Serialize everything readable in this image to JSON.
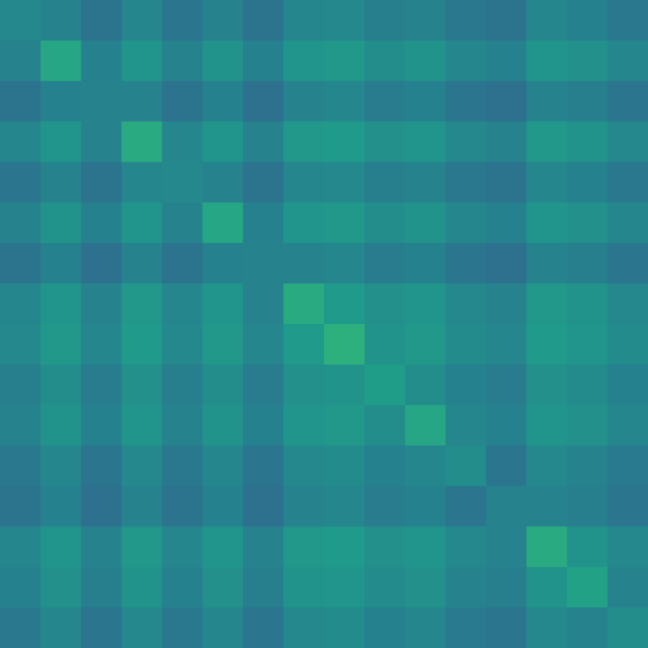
{
  "chart_data": {
    "type": "heatmap",
    "colormap": "viridis",
    "vlim": [
      0,
      1
    ],
    "z": [
      [
        0.47,
        0.45,
        0.38,
        0.46,
        0.39,
        0.45,
        0.38,
        0.46,
        0.47,
        0.43,
        0.45,
        0.4,
        0.38,
        0.46,
        0.44,
        0.4
      ],
      [
        0.45,
        0.59,
        0.44,
        0.52,
        0.45,
        0.51,
        0.44,
        0.52,
        0.53,
        0.49,
        0.51,
        0.46,
        0.44,
        0.52,
        0.5,
        0.46
      ],
      [
        0.38,
        0.44,
        0.45,
        0.45,
        0.38,
        0.44,
        0.37,
        0.45,
        0.46,
        0.42,
        0.44,
        0.39,
        0.37,
        0.45,
        0.43,
        0.39
      ],
      [
        0.46,
        0.52,
        0.45,
        0.61,
        0.46,
        0.52,
        0.45,
        0.53,
        0.54,
        0.5,
        0.52,
        0.47,
        0.45,
        0.53,
        0.51,
        0.47
      ],
      [
        0.39,
        0.45,
        0.38,
        0.46,
        0.47,
        0.45,
        0.38,
        0.46,
        0.47,
        0.43,
        0.45,
        0.4,
        0.38,
        0.46,
        0.44,
        0.4
      ],
      [
        0.45,
        0.51,
        0.44,
        0.52,
        0.45,
        0.59,
        0.44,
        0.52,
        0.53,
        0.49,
        0.51,
        0.46,
        0.44,
        0.52,
        0.5,
        0.46
      ],
      [
        0.38,
        0.44,
        0.37,
        0.45,
        0.38,
        0.44,
        0.45,
        0.45,
        0.46,
        0.42,
        0.44,
        0.39,
        0.37,
        0.45,
        0.43,
        0.39
      ],
      [
        0.46,
        0.52,
        0.45,
        0.53,
        0.46,
        0.52,
        0.45,
        0.61,
        0.54,
        0.5,
        0.52,
        0.47,
        0.45,
        0.53,
        0.51,
        0.47
      ],
      [
        0.47,
        0.53,
        0.46,
        0.54,
        0.47,
        0.53,
        0.46,
        0.54,
        0.63,
        0.51,
        0.53,
        0.48,
        0.46,
        0.54,
        0.52,
        0.48
      ],
      [
        0.43,
        0.49,
        0.42,
        0.5,
        0.43,
        0.49,
        0.42,
        0.5,
        0.51,
        0.55,
        0.49,
        0.44,
        0.42,
        0.5,
        0.48,
        0.44
      ],
      [
        0.45,
        0.51,
        0.44,
        0.52,
        0.45,
        0.51,
        0.44,
        0.52,
        0.53,
        0.49,
        0.59,
        0.46,
        0.44,
        0.52,
        0.5,
        0.46
      ],
      [
        0.4,
        0.46,
        0.39,
        0.47,
        0.4,
        0.46,
        0.39,
        0.47,
        0.48,
        0.44,
        0.46,
        0.49,
        0.39,
        0.47,
        0.45,
        0.41
      ],
      [
        0.38,
        0.44,
        0.37,
        0.45,
        0.38,
        0.44,
        0.37,
        0.45,
        0.46,
        0.42,
        0.44,
        0.39,
        0.45,
        0.45,
        0.43,
        0.39
      ],
      [
        0.46,
        0.52,
        0.45,
        0.53,
        0.46,
        0.52,
        0.45,
        0.53,
        0.54,
        0.5,
        0.52,
        0.47,
        0.45,
        0.61,
        0.51,
        0.47
      ],
      [
        0.44,
        0.5,
        0.43,
        0.51,
        0.44,
        0.5,
        0.43,
        0.51,
        0.52,
        0.48,
        0.5,
        0.45,
        0.43,
        0.51,
        0.57,
        0.45
      ],
      [
        0.4,
        0.46,
        0.39,
        0.47,
        0.4,
        0.46,
        0.39,
        0.47,
        0.48,
        0.44,
        0.46,
        0.41,
        0.39,
        0.47,
        0.45,
        0.49
      ]
    ]
  }
}
